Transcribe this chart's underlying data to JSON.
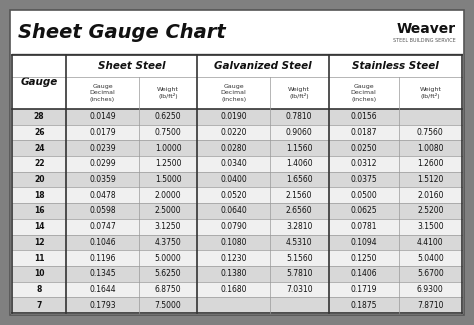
{
  "title": "Sheet Gauge Chart",
  "bg_outer": "#808080",
  "bg_white": "#ffffff",
  "bg_header_row": "#cccccc",
  "bg_row_dark": "#d8d8d8",
  "bg_row_light": "#f0f0f0",
  "section_headers": [
    "Sheet Steel",
    "Galvanized Steel",
    "Stainless Steel"
  ],
  "gauges": [
    28,
    26,
    24,
    22,
    20,
    18,
    16,
    14,
    12,
    11,
    10,
    8,
    7
  ],
  "sheet_steel": [
    [
      "0.0149",
      "0.6250"
    ],
    [
      "0.0179",
      "0.7500"
    ],
    [
      "0.0239",
      "1.0000"
    ],
    [
      "0.0299",
      "1.2500"
    ],
    [
      "0.0359",
      "1.5000"
    ],
    [
      "0.0478",
      "2.0000"
    ],
    [
      "0.0598",
      "2.5000"
    ],
    [
      "0.0747",
      "3.1250"
    ],
    [
      "0.1046",
      "4.3750"
    ],
    [
      "0.1196",
      "5.0000"
    ],
    [
      "0.1345",
      "5.6250"
    ],
    [
      "0.1644",
      "6.8750"
    ],
    [
      "0.1793",
      "7.5000"
    ]
  ],
  "galvanized_steel": [
    [
      "0.0190",
      "0.7810"
    ],
    [
      "0.0220",
      "0.9060"
    ],
    [
      "0.0280",
      "1.1560"
    ],
    [
      "0.0340",
      "1.4060"
    ],
    [
      "0.0400",
      "1.6560"
    ],
    [
      "0.0520",
      "2.1560"
    ],
    [
      "0.0640",
      "2.6560"
    ],
    [
      "0.0790",
      "3.2810"
    ],
    [
      "0.1080",
      "4.5310"
    ],
    [
      "0.1230",
      "5.1560"
    ],
    [
      "0.1380",
      "5.7810"
    ],
    [
      "0.1680",
      "7.0310"
    ],
    [
      "",
      ""
    ]
  ],
  "stainless_steel": [
    [
      "0.0156",
      ""
    ],
    [
      "0.0187",
      "0.7560"
    ],
    [
      "0.0250",
      "1.0080"
    ],
    [
      "0.0312",
      "1.2600"
    ],
    [
      "0.0375",
      "1.5120"
    ],
    [
      "0.0500",
      "2.0160"
    ],
    [
      "0.0625",
      "2.5200"
    ],
    [
      "0.0781",
      "3.1500"
    ],
    [
      "0.1094",
      "4.4100"
    ],
    [
      "0.1250",
      "5.0400"
    ],
    [
      "0.1406",
      "5.6700"
    ],
    [
      "0.1719",
      "6.9300"
    ],
    [
      "0.1875",
      "7.8710"
    ]
  ]
}
